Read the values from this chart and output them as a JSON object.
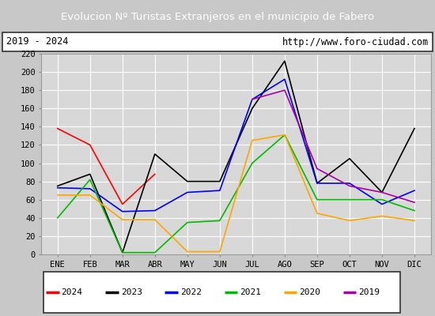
{
  "title": "Evolucion Nº Turistas Extranjeros en el municipio de Fabero",
  "subtitle_left": "2019 - 2024",
  "subtitle_right": "http://www.foro-ciudad.com",
  "title_bg_color": "#4e7abf",
  "title_text_color": "#ffffff",
  "months": [
    "ENE",
    "FEB",
    "MAR",
    "ABR",
    "MAY",
    "JUN",
    "JUL",
    "AGO",
    "SEP",
    "OCT",
    "NOV",
    "DIC"
  ],
  "ylim": [
    0,
    220
  ],
  "yticks": [
    0,
    20,
    40,
    60,
    80,
    100,
    120,
    140,
    160,
    180,
    200,
    220
  ],
  "series": {
    "2024": {
      "color": "#ff0000",
      "values": [
        138,
        120,
        55,
        88,
        null,
        null,
        null,
        null,
        null,
        null,
        null,
        null
      ]
    },
    "2023": {
      "color": "#000000",
      "values": [
        75,
        88,
        2,
        110,
        80,
        80,
        160,
        212,
        78,
        105,
        68,
        138
      ]
    },
    "2022": {
      "color": "#0000ff",
      "values": [
        73,
        72,
        47,
        48,
        68,
        70,
        170,
        192,
        78,
        78,
        55,
        70
      ]
    },
    "2021": {
      "color": "#00bb00",
      "values": [
        40,
        82,
        2,
        2,
        35,
        37,
        100,
        131,
        60,
        60,
        60,
        48
      ]
    },
    "2020": {
      "color": "#ffa500",
      "values": [
        65,
        65,
        38,
        38,
        3,
        3,
        125,
        131,
        45,
        37,
        42,
        37
      ]
    },
    "2019": {
      "color": "#aa00aa",
      "values": [
        null,
        null,
        null,
        null,
        null,
        null,
        170,
        180,
        94,
        75,
        68,
        57
      ]
    }
  },
  "legend_order": [
    "2024",
    "2023",
    "2022",
    "2021",
    "2020",
    "2019"
  ],
  "fig_bg_color": "#c8c8c8",
  "plot_bg_color": "#d8d8d8",
  "grid_color": "#ffffff"
}
